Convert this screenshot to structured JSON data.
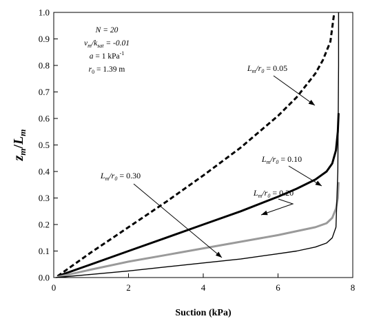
{
  "chart_data": {
    "type": "line",
    "xlabel": "Suction (kPa)",
    "ylabel_main": "z",
    "ylabel_sub": "m",
    "ylabel_sep": "/",
    "ylabel_main2": "L",
    "ylabel_sub2": "m",
    "xlim": [
      0,
      8
    ],
    "ylim": [
      0,
      1.0
    ],
    "xticks": [
      "0",
      "2",
      "4",
      "6",
      "8"
    ],
    "yticks": [
      "0.0",
      "0.1",
      "0.2",
      "0.3",
      "0.4",
      "0.5",
      "0.6",
      "0.7",
      "0.8",
      "0.9",
      "1.0"
    ],
    "grid": false,
    "parameters": [
      {
        "parts": [
          {
            "t": "N = 20",
            "style": "italic"
          }
        ]
      },
      {
        "parts": [
          {
            "t": "v",
            "style": "italic"
          },
          {
            "t": "m",
            "style": "italic",
            "sub": true
          },
          {
            "t": "/k",
            "style": "italic"
          },
          {
            "t": "sat",
            "style": "italic",
            "sub": true
          },
          {
            "t": " = -0.01",
            "style": "italic"
          }
        ]
      },
      {
        "parts": [
          {
            "t": "a",
            "style": "italic"
          },
          {
            "t": " = 1 kPa"
          },
          {
            "t": "-1",
            "sup": true
          }
        ]
      },
      {
        "parts": [
          {
            "t": "r",
            "style": "italic"
          },
          {
            "t": "0",
            "sub": true
          },
          {
            "t": " = 1.39 m"
          }
        ]
      }
    ],
    "series": [
      {
        "label_ratio": "L",
        "label_sub1": "m",
        "label_mid": "/r",
        "label_sub2": "0",
        "label_val": " = 0.05",
        "style": "dashed",
        "color": "#000000",
        "width": 3,
        "x": [
          0.1,
          1,
          2,
          3,
          4,
          5,
          6,
          6.5,
          7.0,
          7.2,
          7.4,
          7.5
        ],
        "y": [
          0.005,
          0.095,
          0.19,
          0.285,
          0.385,
          0.49,
          0.61,
          0.68,
          0.77,
          0.82,
          0.89,
          0.995
        ]
      },
      {
        "label_ratio": "L",
        "label_sub1": "m",
        "label_mid": "/r",
        "label_sub2": "0",
        "label_val": " = 0.10",
        "style": "solid",
        "color": "#000000",
        "width": 3,
        "x": [
          0.1,
          1,
          2,
          3,
          4,
          5,
          6,
          6.5,
          7.0,
          7.3,
          7.45,
          7.55,
          7.6,
          7.62
        ],
        "y": [
          0.005,
          0.05,
          0.1,
          0.15,
          0.2,
          0.25,
          0.305,
          0.335,
          0.37,
          0.4,
          0.43,
          0.48,
          0.55,
          0.62
        ]
      },
      {
        "label_ratio": "L",
        "label_sub1": "m",
        "label_mid": "/r",
        "label_sub2": "0",
        "label_val": " = 0.20",
        "style": "solid",
        "color": "#9a9a9a",
        "width": 3,
        "x": [
          0.1,
          1,
          2,
          3,
          4,
          5,
          6,
          6.5,
          7.0,
          7.3,
          7.45,
          7.55,
          7.6,
          7.62
        ],
        "y": [
          0.002,
          0.03,
          0.06,
          0.085,
          0.11,
          0.135,
          0.16,
          0.175,
          0.19,
          0.205,
          0.225,
          0.26,
          0.3,
          0.36
        ]
      },
      {
        "label_ratio": "L",
        "label_sub1": "m",
        "label_mid": "/r",
        "label_sub2": "0",
        "label_val": " = 0.30",
        "style": "solid",
        "color": "#000000",
        "width": 1.4,
        "x": [
          0.05,
          1,
          2,
          3,
          4,
          5,
          6,
          6.5,
          7.0,
          7.3,
          7.45,
          7.55,
          7.6,
          7.62,
          7.62
        ],
        "y": [
          0.0,
          0.012,
          0.025,
          0.04,
          0.055,
          0.07,
          0.09,
          0.1,
          0.115,
          0.13,
          0.15,
          0.19,
          0.4,
          0.8,
          1.0
        ]
      }
    ]
  }
}
